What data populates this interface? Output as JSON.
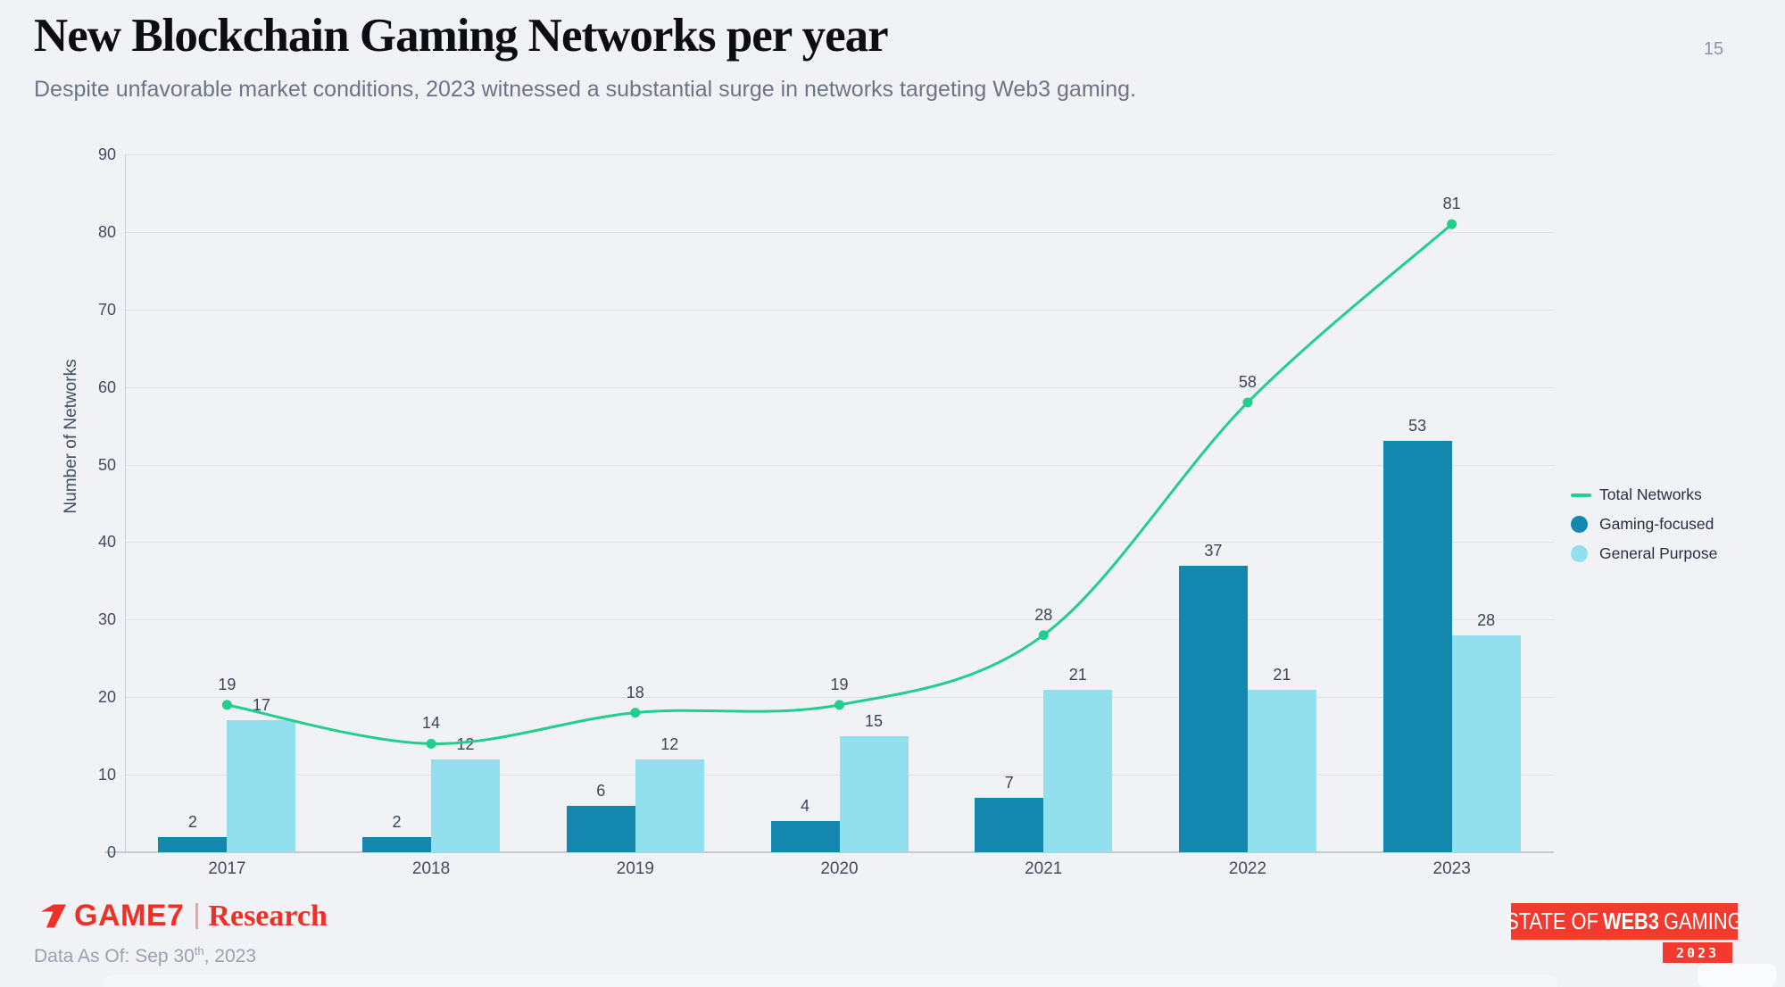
{
  "page": {
    "number": "15"
  },
  "header": {
    "title": "New Blockchain Gaming Networks per year",
    "subtitle": "Despite unfavorable market conditions, 2023 witnessed a substantial surge in networks targeting Web3 gaming."
  },
  "chart_data": {
    "type": "bar+line",
    "categories": [
      "2017",
      "2018",
      "2019",
      "2020",
      "2021",
      "2022",
      "2023"
    ],
    "series": [
      {
        "name": "Total Networks",
        "type": "line",
        "color": "#22ce8e",
        "values": [
          19,
          14,
          18,
          19,
          28,
          58,
          81
        ]
      },
      {
        "name": "Gaming-focused",
        "type": "bar",
        "color": "#1487ae",
        "values": [
          2,
          2,
          6,
          4,
          7,
          37,
          53
        ]
      },
      {
        "name": "General Purpose",
        "type": "bar",
        "color": "#92dfee",
        "values": [
          17,
          12,
          12,
          15,
          21,
          21,
          28
        ]
      }
    ],
    "xlabel": "",
    "ylabel": "Number of Networks",
    "ylim": [
      0,
      90
    ],
    "ytick_step": 10,
    "grid": true,
    "value_labels": true,
    "legend_position": "right"
  },
  "footer": {
    "brand_name": "GAME7",
    "brand_division": "Research",
    "data_as_of_prefix": "Data As Of: Sep 30",
    "data_as_of_sup": "th",
    "data_as_of_suffix": ", 2023"
  },
  "badge": {
    "part1": "STATE OF",
    "part2": "WEB3",
    "part3": "GAMING",
    "year": "2023"
  },
  "colors": {
    "background": "#f1f2f6",
    "accent_red": "#ee3126",
    "line_green": "#22ce8e",
    "bar_dark": "#1487ae",
    "bar_light": "#92dfee"
  }
}
